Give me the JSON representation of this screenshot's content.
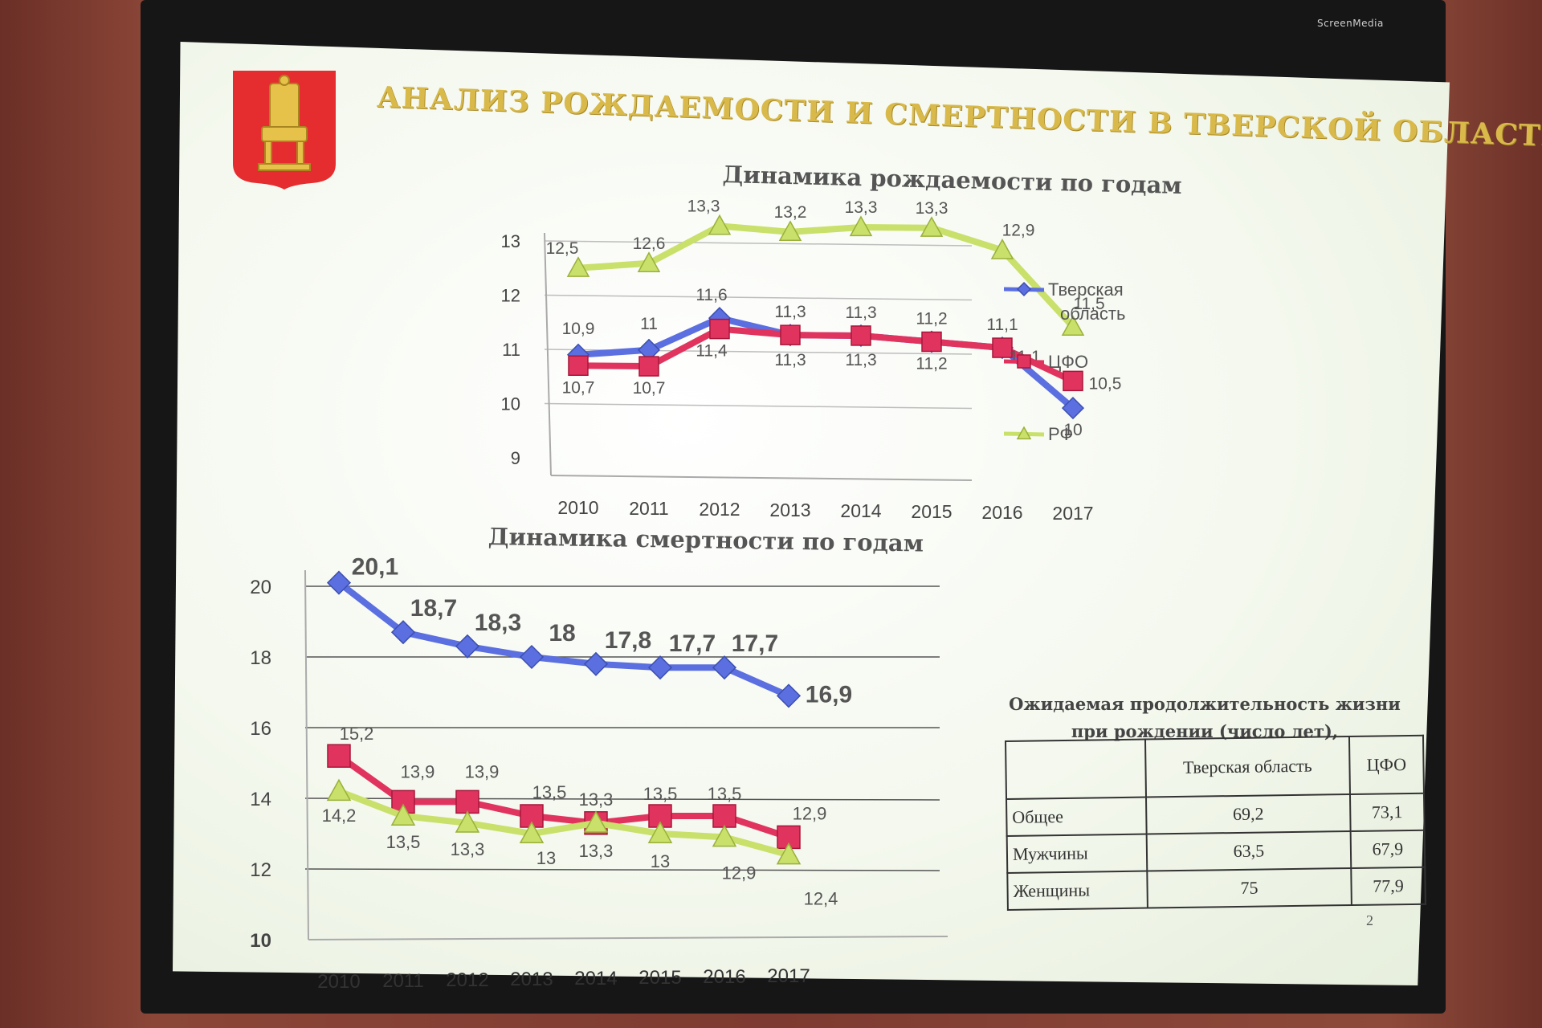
{
  "frame_label": "ScreenMedia",
  "slide": {
    "title": "АНАЛИЗ РОЖДАЕМОСТИ И СМЕРТНОСТИ В ТВЕРСКОЙ ОБЛАСТИ",
    "page_number": "2"
  },
  "colors": {
    "tver": "#5b6fe0",
    "cfo": "#e0345f",
    "rf": "#c9e06a",
    "title_gold": "#d8b94a",
    "emblem_red": "#e52d2f"
  },
  "chart_data": [
    {
      "type": "line",
      "title": "Динамика рождаемости по годам",
      "categories": [
        "2010",
        "2011",
        "2012",
        "2013",
        "2014",
        "2015",
        "2016",
        "2017"
      ],
      "ylim": [
        9,
        13
      ],
      "y_ticks": [
        "9",
        "10",
        "11",
        "12",
        "13"
      ],
      "grid": true,
      "legend": "right",
      "series": [
        {
          "name": "Тверская область",
          "marker": "diamond",
          "color": "#5b6fe0",
          "values": [
            10.9,
            11,
            11.6,
            11.3,
            11.3,
            11.2,
            11.1,
            10
          ],
          "labels": [
            "10,9",
            "11",
            "11,6",
            "",
            "",
            "11,2",
            "11,1",
            "10"
          ]
        },
        {
          "name": "ЦФО",
          "marker": "square",
          "color": "#e0345f",
          "values": [
            10.7,
            10.7,
            11.4,
            11.3,
            11.3,
            11.2,
            11.1,
            10.5
          ],
          "labels": [
            "10,7",
            "10,7",
            "11,4",
            "11,3",
            "11,3",
            "11,2",
            "11,1",
            "10,5"
          ]
        },
        {
          "name": "РФ",
          "marker": "triangle",
          "color": "#c9e06a",
          "values": [
            12.5,
            12.6,
            13.3,
            13.2,
            13.3,
            13.3,
            12.9,
            11.5
          ],
          "labels": [
            "12,5",
            "12,6",
            "13,3",
            "13,2",
            "13,3",
            "13,3",
            "12,9",
            "11,5"
          ]
        }
      ],
      "extra_labels": [
        "11,3",
        "11,3"
      ]
    },
    {
      "type": "line",
      "title": "Динамика смертности по годам",
      "categories": [
        "2010",
        "2011",
        "2012",
        "2013",
        "2014",
        "2015",
        "2016",
        "2017"
      ],
      "ylim": [
        10,
        20
      ],
      "y_ticks": [
        "10",
        "12",
        "14",
        "16",
        "18",
        "20"
      ],
      "grid": true,
      "legend": "none",
      "series": [
        {
          "marker": "diamond",
          "color": "#5b6fe0",
          "values": [
            20.1,
            18.7,
            18.3,
            18,
            17.8,
            17.7,
            17.7,
            16.9
          ],
          "labels": [
            "20,1",
            "18,7",
            "18,3",
            "18",
            "17,8",
            "17,7",
            "17,7",
            "16,9"
          ]
        },
        {
          "marker": "square",
          "color": "#e0345f",
          "values": [
            15.2,
            13.9,
            13.9,
            13.5,
            13.3,
            13.5,
            13.5,
            12.9
          ],
          "labels": [
            "15,2",
            "13,9",
            "13,9",
            "13,5",
            "13,3",
            "13,5",
            "13,5",
            "12,9"
          ]
        },
        {
          "marker": "triangle",
          "color": "#c9e06a",
          "values": [
            14.2,
            13.5,
            13.3,
            13,
            13.3,
            13,
            12.9,
            12.4
          ],
          "labels": [
            "14,2",
            "13,5",
            "13,3",
            "13",
            "13,3",
            "13",
            "12,9",
            "12,4"
          ]
        }
      ]
    }
  ],
  "life_table": {
    "title_line1": "Ожидаемая продолжительность жизни",
    "title_line2": "при рождении (число  лет),",
    "col1": "Тверская область",
    "col2": "ЦФО",
    "rows": [
      {
        "label": "Общее",
        "v1": "69,2",
        "v2": "73,1"
      },
      {
        "label": "Мужчины",
        "v1": "63,5",
        "v2": "67,9"
      },
      {
        "label": "Женщины",
        "v1": "75",
        "v2": "77,9"
      }
    ]
  }
}
